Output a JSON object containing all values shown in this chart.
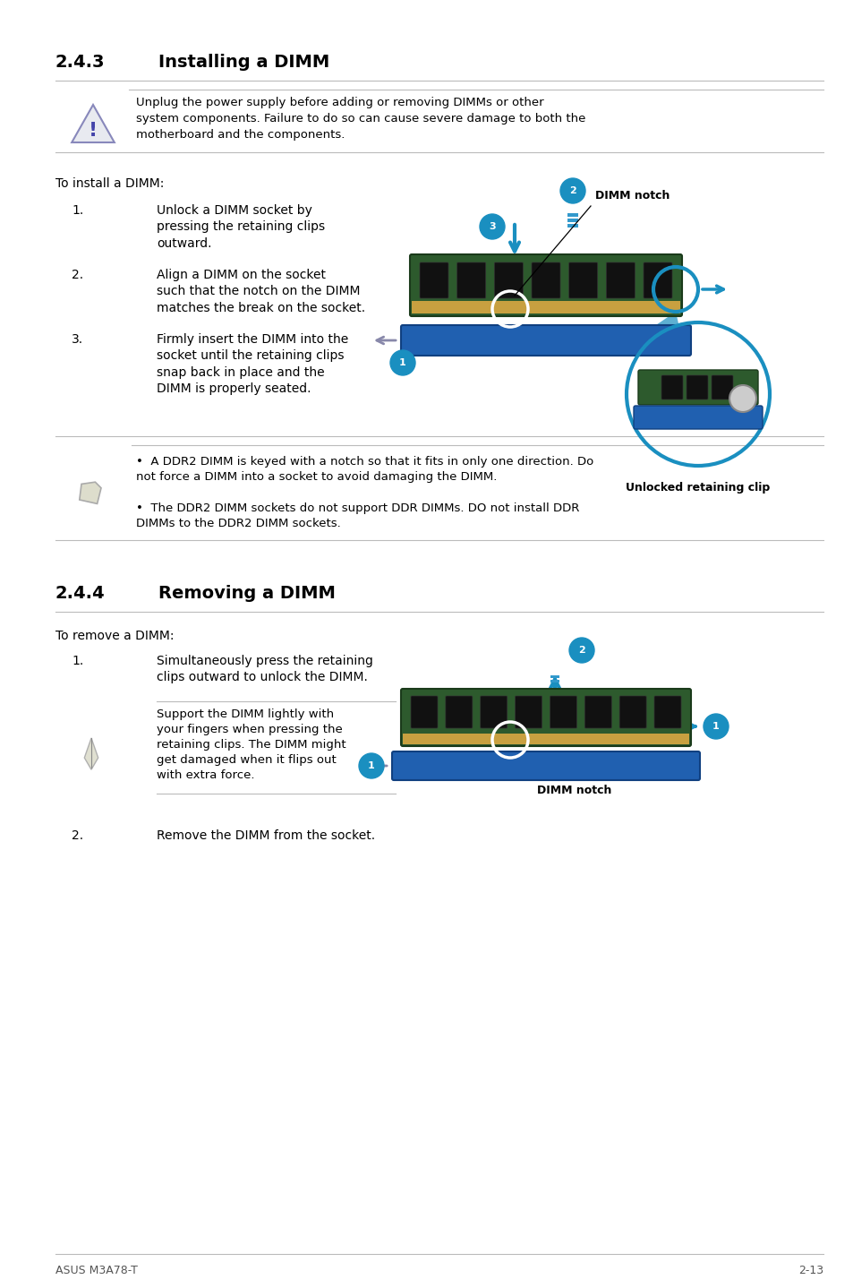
{
  "page_bg": "#ffffff",
  "section1_num": "2.4.3",
  "section1_title": "Installing a DIMM",
  "section2_num": "2.4.4",
  "section2_title": "Removing a DIMM",
  "warning_text_line1": "Unplug the power supply before adding or removing DIMMs or other",
  "warning_text_line2": "system components. Failure to do so can cause severe damage to both the",
  "warning_text_line3": "motherboard and the components.",
  "install_intro": "To install a DIMM:",
  "install_step1_num": "1.",
  "install_step1": "Unlock a DIMM socket by\npressing the retaining clips\noutward.",
  "install_step2_num": "2.",
  "install_step2": "Align a DIMM on the socket\nsuch that the notch on the DIMM\nmatches the break on the socket.",
  "install_step3_num": "3.",
  "install_step3": "Firmly insert the DIMM into the\nsocket until the retaining clips\nsnap back in place and the\nDIMM is properly seated.",
  "note_bullet1": "A DDR2 DIMM is keyed with a notch so that it fits in only one direction. Do\nnot force a DIMM into a socket to avoid damaging the DIMM.",
  "note_bullet2": "The DDR2 DIMM sockets do not support DDR DIMMs. DO not install DDR\nDIMMs to the DDR2 DIMM sockets.",
  "remove_intro": "To remove a DIMM:",
  "remove_step1_num": "1.",
  "remove_step1": "Simultaneously press the retaining\nclips outward to unlock the DIMM.",
  "remove_note": "Support the DIMM lightly with\nyour fingers when pressing the\nretaining clips. The DIMM might\nget damaged when it flips out\nwith extra force.",
  "remove_step2_num": "2.",
  "remove_step2": "Remove the DIMM from the socket.",
  "footer_left": "ASUS M3A78-T",
  "footer_right": "2-13",
  "dimm_notch_label": "DIMM notch",
  "unlocked_label": "Unlocked retaining clip",
  "dimm_notch_label2": "DIMM notch",
  "accent_color": "#1a8fc0",
  "text_color": "#000000",
  "gray": "#aaaaaa",
  "title_size": 14,
  "body_size": 10,
  "small_size": 9
}
